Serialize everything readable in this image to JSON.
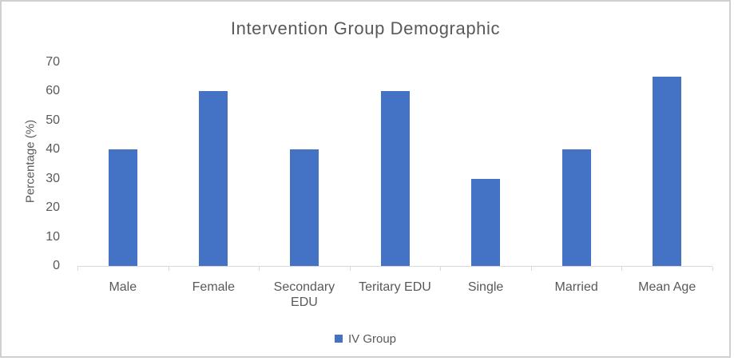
{
  "chart_data": {
    "type": "bar",
    "title": "Intervention Group Demographic",
    "ylabel": "Percentage (%)",
    "xlabel": "",
    "categories": [
      "Male",
      "Female",
      "Secondary EDU",
      "Teritary EDU",
      "Single",
      "Married",
      "Mean Age"
    ],
    "categories_display": [
      [
        "Male"
      ],
      [
        "Female"
      ],
      [
        "Secondary",
        "EDU"
      ],
      [
        "Teritary EDU"
      ],
      [
        "Single"
      ],
      [
        "Married"
      ],
      [
        "Mean Age"
      ]
    ],
    "series": [
      {
        "name": "IV Group",
        "values": [
          40,
          60,
          40,
          60,
          30,
          40,
          65
        ]
      }
    ],
    "ylim": [
      0,
      70
    ],
    "yticks": [
      0,
      10,
      20,
      30,
      40,
      50,
      60,
      70
    ],
    "grid": false,
    "legend_position": "bottom",
    "colors": {
      "bar": "#4472C4",
      "axis_line": "#D9D9D9",
      "text": "#595959",
      "frame_border": "#D0D0D0"
    }
  },
  "legend": {
    "items": [
      {
        "label": "IV Group",
        "color": "#4472C4"
      }
    ]
  }
}
